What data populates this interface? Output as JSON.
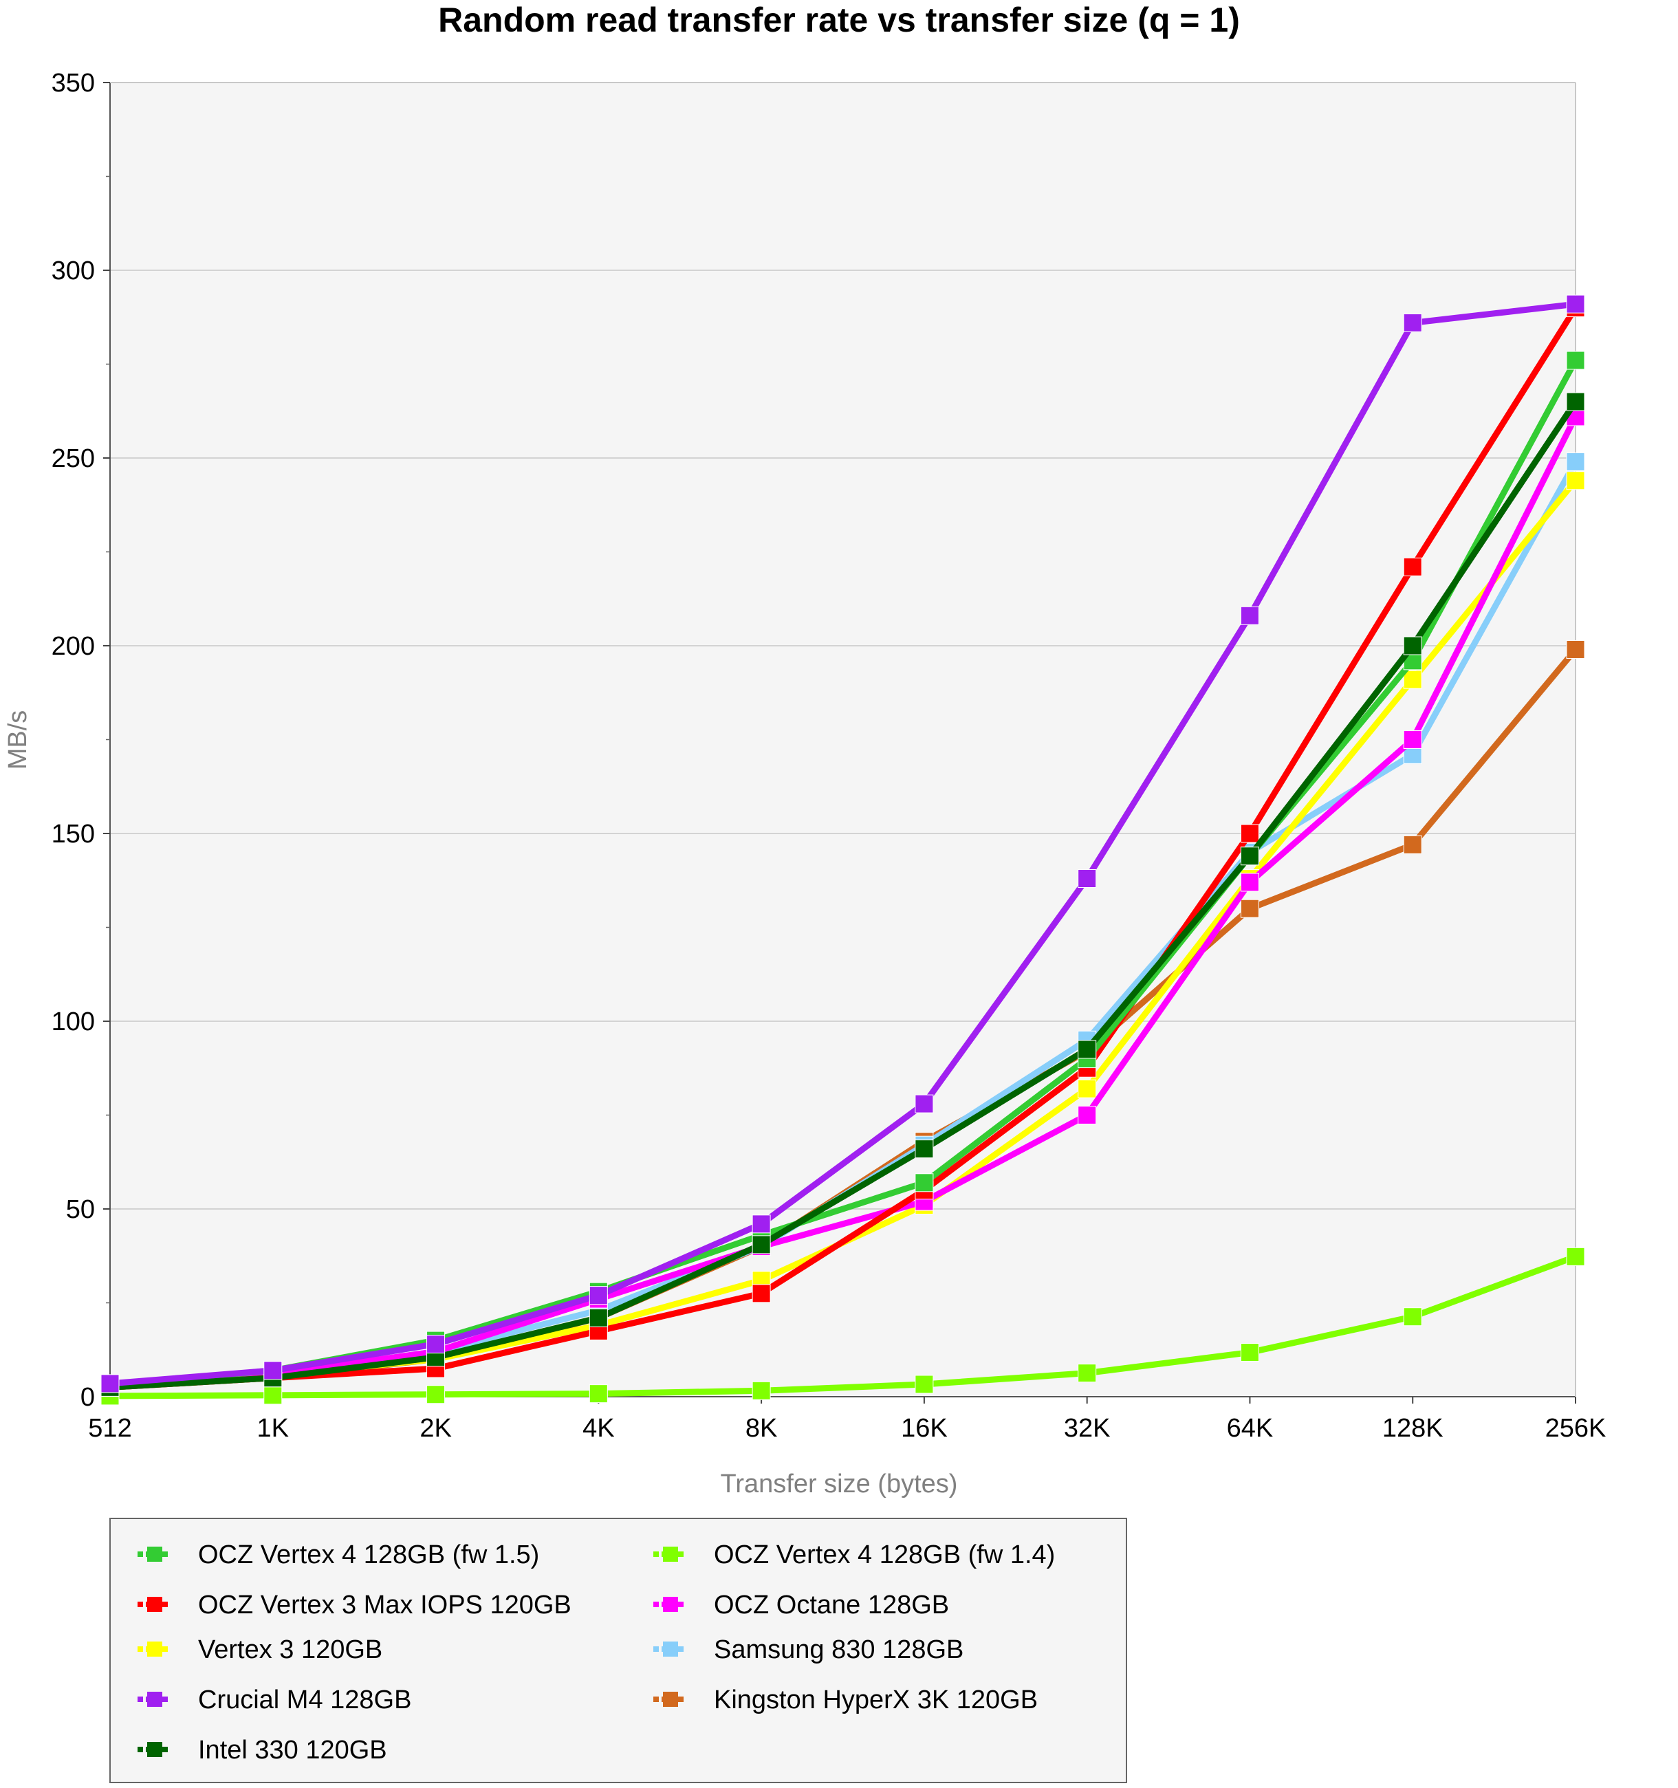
{
  "chart_data": {
    "type": "line",
    "title": "Random read transfer rate vs transfer size (q = 1)",
    "xlabel": "Transfer size (bytes)",
    "ylabel": "MB/s",
    "categories": [
      "512",
      "1K",
      "2K",
      "4K",
      "8K",
      "16K",
      "32K",
      "64K",
      "128K",
      "256K"
    ],
    "ylim": [
      0,
      350
    ],
    "yticks": [
      0,
      50,
      100,
      150,
      200,
      250,
      300,
      350
    ],
    "grid": true,
    "legend_position": "bottom",
    "series": [
      {
        "name": "OCZ Vertex 4 128GB (fw 1.5)",
        "color": "#33cc33",
        "values": [
          3,
          7,
          15,
          28,
          43,
          57,
          90,
          144,
          196,
          276
        ]
      },
      {
        "name": "OCZ Vertex 4 128GB (fw 1.4)",
        "color": "#80ff00",
        "values": [
          0.2,
          0.4,
          0.6,
          0.8,
          1.6,
          3.3,
          6.3,
          11.8,
          21.3,
          37.3
        ]
      },
      {
        "name": "OCZ Vertex 3 Max IOPS 120GB",
        "color": "#ff0000",
        "values": [
          2.5,
          5,
          7.5,
          17.5,
          27.5,
          55,
          87.5,
          150,
          221,
          290
        ]
      },
      {
        "name": "OCZ Octane 128GB",
        "color": "#ff00ff",
        "values": [
          3,
          6,
          12,
          26,
          40,
          52,
          75,
          137,
          175,
          261
        ]
      },
      {
        "name": "Vertex 3 120GB",
        "color": "#ffff00",
        "values": [
          2.5,
          5.5,
          10,
          19,
          31,
          51,
          82,
          138,
          191,
          244
        ]
      },
      {
        "name": "Samsung 830 128GB",
        "color": "#87cefa",
        "values": [
          3,
          6,
          12,
          23,
          40,
          67,
          95,
          145,
          171,
          249
        ]
      },
      {
        "name": "Crucial M4 128GB",
        "color": "#a020f0",
        "values": [
          3.5,
          7,
          14,
          27,
          46,
          78,
          138,
          208,
          286,
          291
        ]
      },
      {
        "name": "Kingston HyperX 3K 120GB",
        "color": "#d2691e",
        "values": [
          2.5,
          5,
          10,
          21,
          40,
          68,
          92,
          130,
          147,
          199
        ]
      },
      {
        "name": "Intel 330 120GB",
        "color": "#006400",
        "values": [
          2.5,
          5,
          10.5,
          21,
          40.5,
          66,
          92.5,
          144,
          200,
          265
        ]
      }
    ]
  }
}
